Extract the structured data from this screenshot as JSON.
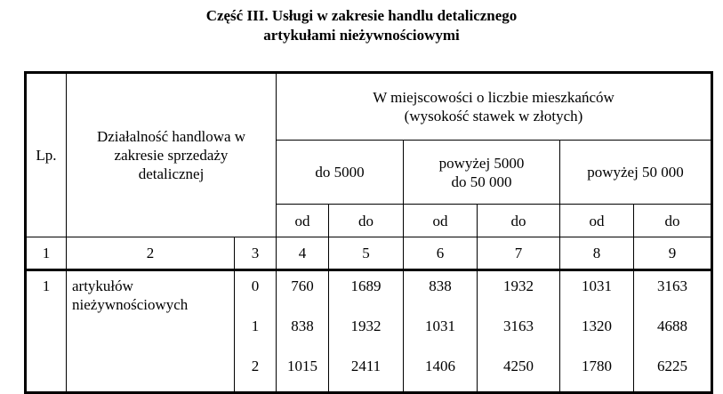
{
  "title": {
    "line1": "Część III. Usługi w zakresie handlu detalicznego",
    "line2": "artykułami nieżywnościowymi"
  },
  "header": {
    "lp": "Lp.",
    "activity": "Działalność handlowa w zakresie sprzedaży detalicznej",
    "group": "W miejscowości o liczbie mieszkańców (wysokość stawek w złotych)",
    "ranges": [
      "do 5000",
      "powyżej 5000 do 50 000",
      "powyżej 50 000"
    ],
    "od": "od",
    "do": "do"
  },
  "column_numbers": [
    "1",
    "2",
    "3",
    "4",
    "5",
    "6",
    "7",
    "8",
    "9"
  ],
  "row": {
    "lp": "1",
    "activity": "artykułów nieżywnościowych",
    "sub": [
      {
        "k": "0",
        "v": [
          "760",
          "1689",
          "838",
          "1932",
          "1031",
          "3163"
        ]
      },
      {
        "k": "1",
        "v": [
          "838",
          "1932",
          "1031",
          "3163",
          "1320",
          "4688"
        ]
      },
      {
        "k": "2",
        "v": [
          "1015",
          "2411",
          "1406",
          "4250",
          "1780",
          "6225"
        ]
      }
    ]
  }
}
